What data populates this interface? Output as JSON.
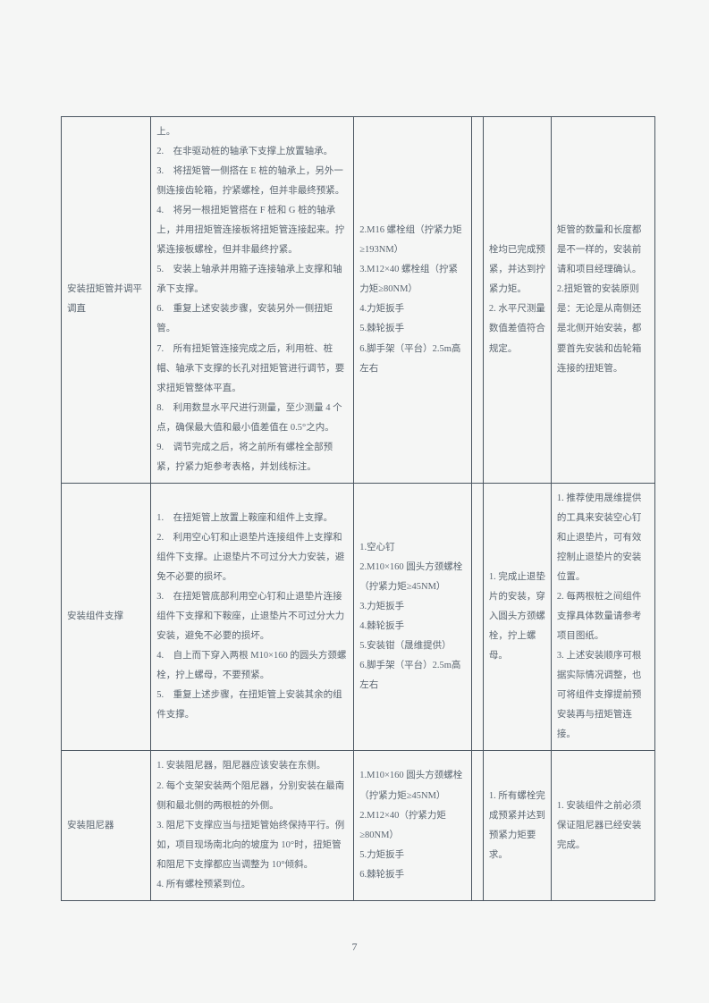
{
  "page_number": "7",
  "rows": [
    {
      "c1": "安装扭矩管并调平调直",
      "c2": "上。\n2.　在非驱动桩的轴承下支撑上放置轴承。\n3.　将扭矩管一侧搭在 E 桩的轴承上，另外一侧连接齿轮箱，拧紧螺栓，但并非最终预紧。\n4.　将另一根扭矩管搭在 F 桩和 G 桩的轴承上，并用扭矩管连接板将扭矩管连接起来。拧紧连接板螺栓，但并非最终拧紧。\n5.　安装上轴承并用箍子连接轴承上支撑和轴承下支撑。\n6.　重复上述安装步骤，安装另外一侧扭矩管。\n7.　所有扭矩管连接完成之后，利用桩、桩帽、轴承下支撑的长孔对扭矩管进行调节，要求扭矩管整体平直。\n8.　利用数显水平尺进行测量，至少测量 4 个点，确保最大值和最小值差值在 0.5°之内。\n9.　调节完成之后，将之前所有螺栓全部预紧，拧紧力矩参考表格，并划线标注。",
      "c3": "2.M16 螺栓组（拧紧力矩≥193NM）\n3.M12×40 螺栓组（拧紧力矩≥80NM）\n4.力矩扳手\n5.棘轮扳手\n6.脚手架（平台）2.5m高左右",
      "c4": "",
      "c5": "栓均已完成预紧，并达到拧紧力矩。\n2. 水平尺测量数值差值符合规定。",
      "c6": "矩管的数量和长度都是不一样的，安装前请和项目经理确认。\n2.扭矩管的安装原则是：无论是从南侧还是北侧开始安装，都要首先安装和齿轮箱连接的扭矩管。"
    },
    {
      "c1": "安装组件支撑",
      "c2": "1.　在扭矩管上放置上鞍座和组件上支撑。\n2.　利用空心钉和止退垫片连接组件上支撑和组件下支撑。止退垫片不可过分大力安装，避免不必要的损坏。\n3.　在扭矩管底部利用空心钉和止退垫片连接组件下支撑和下鞍座，止退垫片不可过分大力安装，避免不必要的损坏。\n4.　自上而下穿入两根 M10×160 的圆头方颈螺栓，拧上螺母，不要预紧。\n5.　重复上述步骤，在扭矩管上安装其余的组件支撑。",
      "c3": "1.空心钉\n2.M10×160 圆头方颈螺栓（拧紧力矩≥45NM）\n3.力矩扳手\n4.棘轮扳手\n5.安装钳（晟维提供）\n6.脚手架（平台）2.5m高左右",
      "c4": "",
      "c5": "1. 完成止退垫片的安装，穿入圆头方颈螺栓，拧上螺母。",
      "c6": "1. 推荐使用晟维提供的工具来安装空心钉和止退垫片，可有效控制止退垫片的安装位置。\n2. 每两根桩之间组件支撑具体数量请参考项目图纸。\n3. 上述安装顺序可根据实际情况调整，也可将组件支撑提前预安装再与扭矩管连接。"
    },
    {
      "c1": "安装阻尼器",
      "c2": "1. 安装阻尼器，阻尼器应该安装在东侧。\n2. 每个支架安装两个阻尼器，分别安装在最南侧和最北侧的两根桩的外侧。\n3. 阻尼下支撑应当与扭矩管始终保持平行。例如，项目现场南北向的坡度为 10°时，扭矩管和阻尼下支撑都应当调整为 10°倾斜。\n4. 所有螺栓预紧到位。",
      "c3": "1.M10×160 圆头方颈螺栓（拧紧力矩≥45NM）\n2.M12×40（拧紧力矩≥80NM）\n5.力矩扳手\n6.棘轮扳手",
      "c4": "",
      "c5": "1. 所有螺栓完成预紧并达到预紧力矩要求。",
      "c6": "1. 安装组件之前必须保证阻尼器已经安装完成。"
    }
  ]
}
